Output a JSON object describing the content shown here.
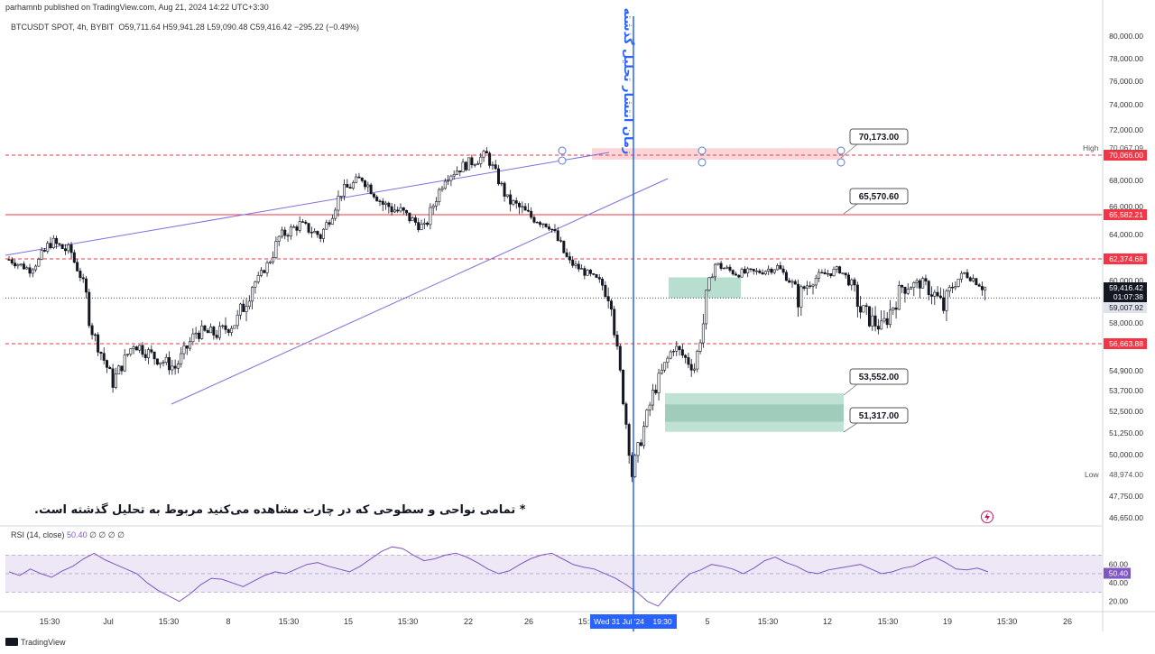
{
  "header": {
    "publisher": "parhamnb published on TradingView.com, Aug 21, 2024 14:22 UTC+3:30"
  },
  "legend": {
    "symbol": "BTCUSDT SPOT, 4h, BYBIT",
    "ohlc": "O59,711.64 H59,941.28 L59,090.48 C59,416.42 −295.22 (−0.49%)"
  },
  "rsi_legend": {
    "label": "RSI (14, close)",
    "value": "50.40",
    "extra": "∅ ∅ ∅ ∅"
  },
  "note_text": "* تمامی نواحی و سطوحی که در چارت مشاهده می‌کنید مربوط به تحلیل گذشته است.",
  "vertical_label": "زمان انتشار تحلیل گذشته",
  "footer": {
    "brand": "TradingView"
  },
  "colors": {
    "up": "#131722",
    "down": "#131722",
    "red_level": "#f23645",
    "trend": "#7e6fe0",
    "vline": "#2962ff",
    "zone_red": "#f8c8cc",
    "zone_green": "#a5d6c2",
    "rsi": "#7e57c2",
    "rsi_band": "#ede7f6"
  },
  "chart_data": [
    {
      "type": "candlestick",
      "title": "BTCUSDT SPOT, 4h, BYBIT",
      "y_ticks": [
        "80,000.00",
        "78,000.00",
        "76,000.00",
        "74,000.00",
        "72,000.00",
        "68,000.00",
        "66,000.00",
        "64,000.00",
        "60,000.00",
        "58,000.00",
        "54,900.00",
        "53,700.00",
        "52,500.00",
        "51,250.00",
        "50,000.00",
        "47,750.00",
        "46,650.00"
      ],
      "x_ticks": [
        "15:30",
        "Jul",
        "15:30",
        "8",
        "15:30",
        "15",
        "15:30",
        "22",
        "26",
        "15:30",
        "5",
        "15:30",
        "12",
        "15:30",
        "19",
        "15:30",
        "26"
      ],
      "ylim": [
        46000,
        81000
      ],
      "price_path": [
        {
          "x": "Jun 27",
          "y": 62300
        },
        {
          "x": "Jun 29",
          "y": 61200
        },
        {
          "x": "Jul 1",
          "y": 63500
        },
        {
          "x": "Jul 2",
          "y": 62800
        },
        {
          "x": "Jul 4",
          "y": 57500
        },
        {
          "x": "Jul 5",
          "y": 54200
        },
        {
          "x": "Jul 6",
          "y": 56700
        },
        {
          "x": "Jul 7",
          "y": 55800
        },
        {
          "x": "Jul 8",
          "y": 55100
        },
        {
          "x": "Jul 9",
          "y": 57400
        },
        {
          "x": "Jul 11",
          "y": 57300
        },
        {
          "x": "Jul 12",
          "y": 58100
        },
        {
          "x": "Jul 14",
          "y": 60200
        },
        {
          "x": "Jul 15",
          "y": 63800
        },
        {
          "x": "Jul 16",
          "y": 64800
        },
        {
          "x": "Jul 18",
          "y": 63900
        },
        {
          "x": "Jul 20",
          "y": 67100
        },
        {
          "x": "Jul 22",
          "y": 68200
        },
        {
          "x": "Jul 23",
          "y": 66200
        },
        {
          "x": "Jul 24",
          "y": 65600
        },
        {
          "x": "Jul 25",
          "y": 64500
        },
        {
          "x": "Jul 27",
          "y": 68300
        },
        {
          "x": "Jul 28",
          "y": 69300
        },
        {
          "x": "Jul 29",
          "y": 70067
        },
        {
          "x": "Jul 30",
          "y": 66500
        },
        {
          "x": "Jul 31",
          "y": 65500
        },
        {
          "x": "Aug 1",
          "y": 64800
        },
        {
          "x": "Aug 2",
          "y": 62000
        },
        {
          "x": "Aug 3",
          "y": 60500
        },
        {
          "x": "Aug 4",
          "y": 59000
        },
        {
          "x": "Aug 5",
          "y": 48974
        },
        {
          "x": "Aug 5 pm",
          "y": 53500
        },
        {
          "x": "Aug 6",
          "y": 56500
        },
        {
          "x": "Aug 7",
          "y": 55100
        },
        {
          "x": "Aug 8",
          "y": 61800
        },
        {
          "x": "Aug 9",
          "y": 60800
        },
        {
          "x": "Aug 10",
          "y": 60900
        },
        {
          "x": "Aug 11",
          "y": 61500
        },
        {
          "x": "Aug 12",
          "y": 59000
        },
        {
          "x": "Aug 13",
          "y": 60500
        },
        {
          "x": "Aug 14",
          "y": 61200
        },
        {
          "x": "Aug 15",
          "y": 58500
        },
        {
          "x": "Aug 16",
          "y": 57700
        },
        {
          "x": "Aug 17",
          "y": 59500
        },
        {
          "x": "Aug 18",
          "y": 59800
        },
        {
          "x": "Aug 19",
          "y": 58600
        },
        {
          "x": "Aug 20",
          "y": 60800
        },
        {
          "x": "Aug 21",
          "y": 59416
        }
      ],
      "levels": [
        {
          "label": "70,066.00",
          "value": 70066,
          "style": "dashed"
        },
        {
          "label": "65,582.21",
          "value": 65582,
          "style": "solid"
        },
        {
          "label": "62,374.68",
          "value": 62374,
          "style": "dashed"
        },
        {
          "label": "56,663.88",
          "value": 56663,
          "style": "dashed"
        }
      ],
      "callouts": [
        {
          "label": "70,173.00",
          "value": 70173
        },
        {
          "label": "65,570.60",
          "value": 65570
        },
        {
          "label": "53,552.00",
          "value": 53552
        },
        {
          "label": "51,317.00",
          "value": 51317
        }
      ],
      "high": {
        "label": "High",
        "value": "70,067.09"
      },
      "low": {
        "label": "Low",
        "value": "48,974.00"
      },
      "current": {
        "price": "59,416.42",
        "countdown": "01:07:38"
      },
      "prev_close": "59,007.92",
      "vline_date": "Wed 31 Jul '24",
      "vline_time": "19:30"
    },
    {
      "type": "line",
      "title": "RSI (14, close)",
      "ylim": [
        10,
        85
      ],
      "y_ticks": [
        "60.00",
        "40.00",
        "20.00"
      ],
      "bands": [
        70,
        30
      ],
      "last_label": "50.40",
      "values": [
        52,
        48,
        55,
        50,
        46,
        53,
        58,
        66,
        72,
        65,
        60,
        55,
        50,
        40,
        32,
        26,
        20,
        28,
        38,
        45,
        44,
        40,
        36,
        42,
        48,
        52,
        50,
        55,
        60,
        62,
        58,
        55,
        52,
        58,
        66,
        74,
        79,
        77,
        70,
        64,
        66,
        70,
        72,
        68,
        62,
        55,
        50,
        53,
        60,
        66,
        70,
        72,
        66,
        60,
        57,
        55,
        50,
        45,
        38,
        30,
        20,
        15,
        28,
        40,
        50,
        54,
        60,
        58,
        55,
        50,
        56,
        64,
        68,
        62,
        58,
        52,
        50,
        54,
        56,
        58,
        60,
        55,
        50,
        52,
        56,
        58,
        64,
        68,
        62,
        55,
        54,
        56,
        52
      ]
    }
  ]
}
